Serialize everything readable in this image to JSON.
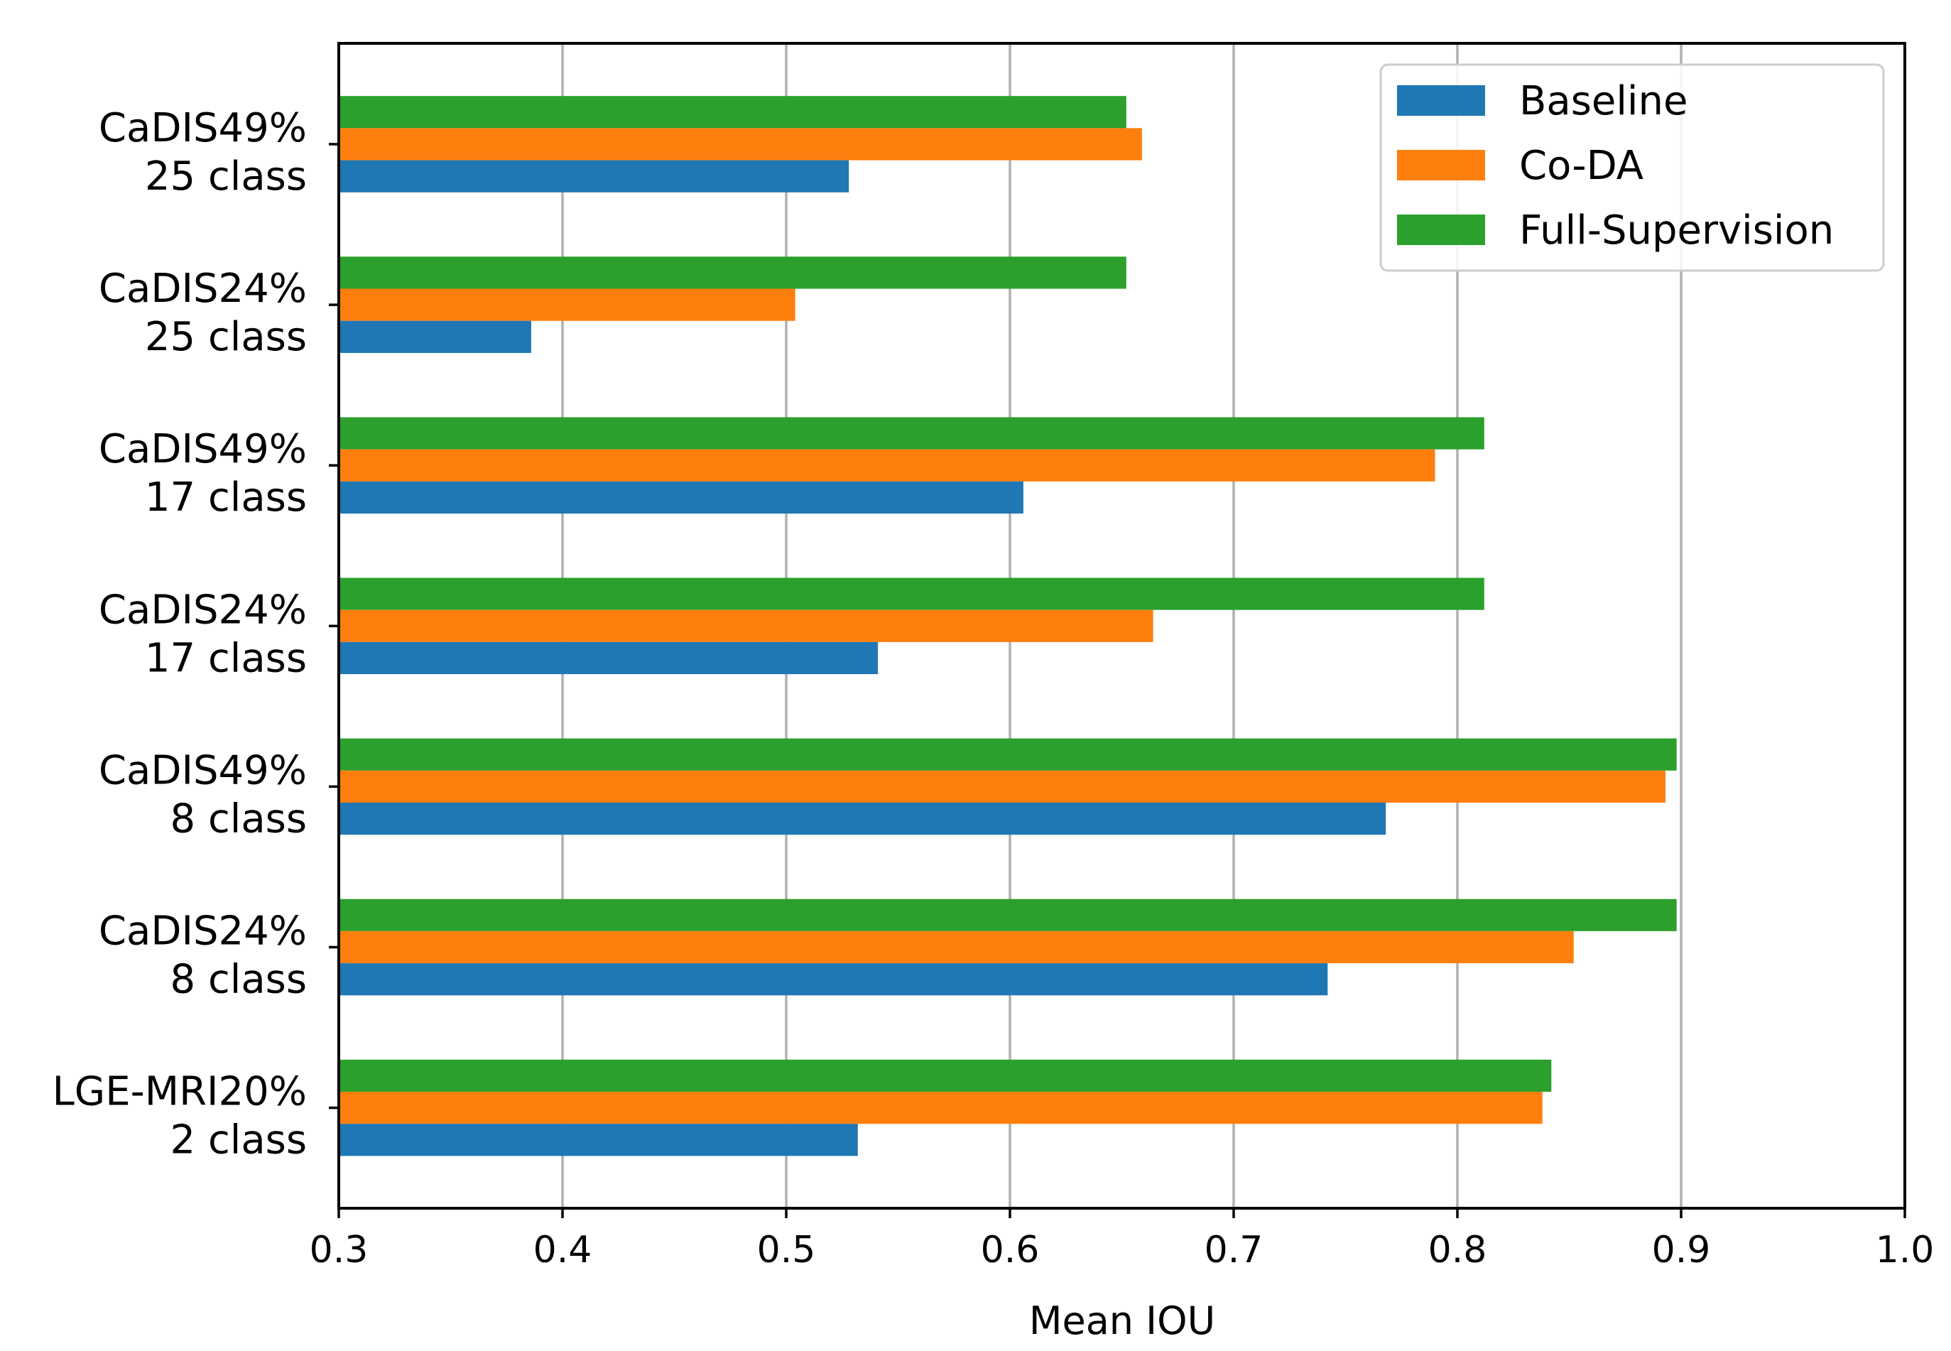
{
  "chart_data": {
    "type": "bar",
    "orientation": "horizontal",
    "title": "",
    "xlabel": "Mean IOU",
    "ylabel": "",
    "xlim": [
      0.3,
      1.0
    ],
    "xticks": [
      "0.3",
      "0.4",
      "0.5",
      "0.6",
      "0.7",
      "0.8",
      "0.9",
      "1.0"
    ],
    "grid": "vertical",
    "legend_position": "top-right",
    "categories": [
      {
        "line1": "CaDIS49%",
        "line2": "25 class"
      },
      {
        "line1": "CaDIS24%",
        "line2": "25 class"
      },
      {
        "line1": "CaDIS49%",
        "line2": "17 class"
      },
      {
        "line1": "CaDIS24%",
        "line2": "17 class"
      },
      {
        "line1": "CaDIS49%",
        "line2": "8 class"
      },
      {
        "line1": "CaDIS24%",
        "line2": "8 class"
      },
      {
        "line1": "LGE-MRI20%",
        "line2": "2 class"
      }
    ],
    "series": [
      {
        "name": "Baseline",
        "color": "#1f77b4",
        "values": [
          0.528,
          0.386,
          0.606,
          0.541,
          0.768,
          0.742,
          0.532
        ]
      },
      {
        "name": "Co-DA",
        "color": "#ff7f0e",
        "values": [
          0.659,
          0.504,
          0.79,
          0.664,
          0.893,
          0.852,
          0.838
        ]
      },
      {
        "name": "Full-Supervision",
        "color": "#2ca02c",
        "values": [
          0.652,
          0.652,
          0.812,
          0.812,
          0.898,
          0.898,
          0.842
        ]
      }
    ]
  }
}
